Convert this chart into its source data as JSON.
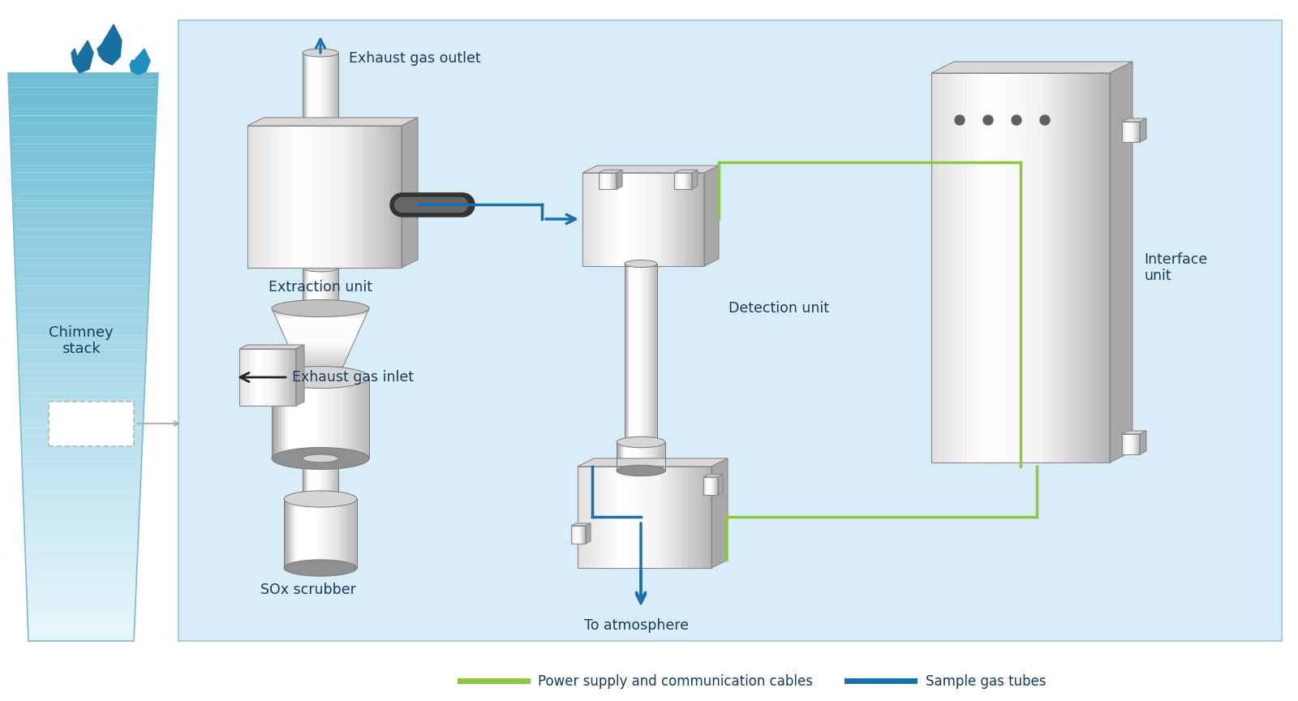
{
  "bg_color": "#ffffff",
  "diagram_bg": "#daeaf5",
  "arrow_blue": "#1a6faf",
  "arrow_green": "#8dc63f",
  "label_color": "#1a3a5c",
  "chimney_grad_top": "#9fd4e8",
  "chimney_grad_bot": "#f0f8fc",
  "smoke_color": "#1a7aaa",
  "labels": {
    "exhaust_outlet": "Exhaust gas outlet",
    "extraction_unit": "Extraction unit",
    "exhaust_inlet": "Exhaust gas inlet",
    "sox_scrubber": "SOx scrubber",
    "detection_unit": "Detection unit",
    "to_atmosphere": "To atmosphere",
    "interface_unit": "Interface\nunit",
    "chimney_stack": "Chimney\nstack",
    "legend_green": "Power supply and communication cables",
    "legend_blue": "Sample gas tubes"
  }
}
